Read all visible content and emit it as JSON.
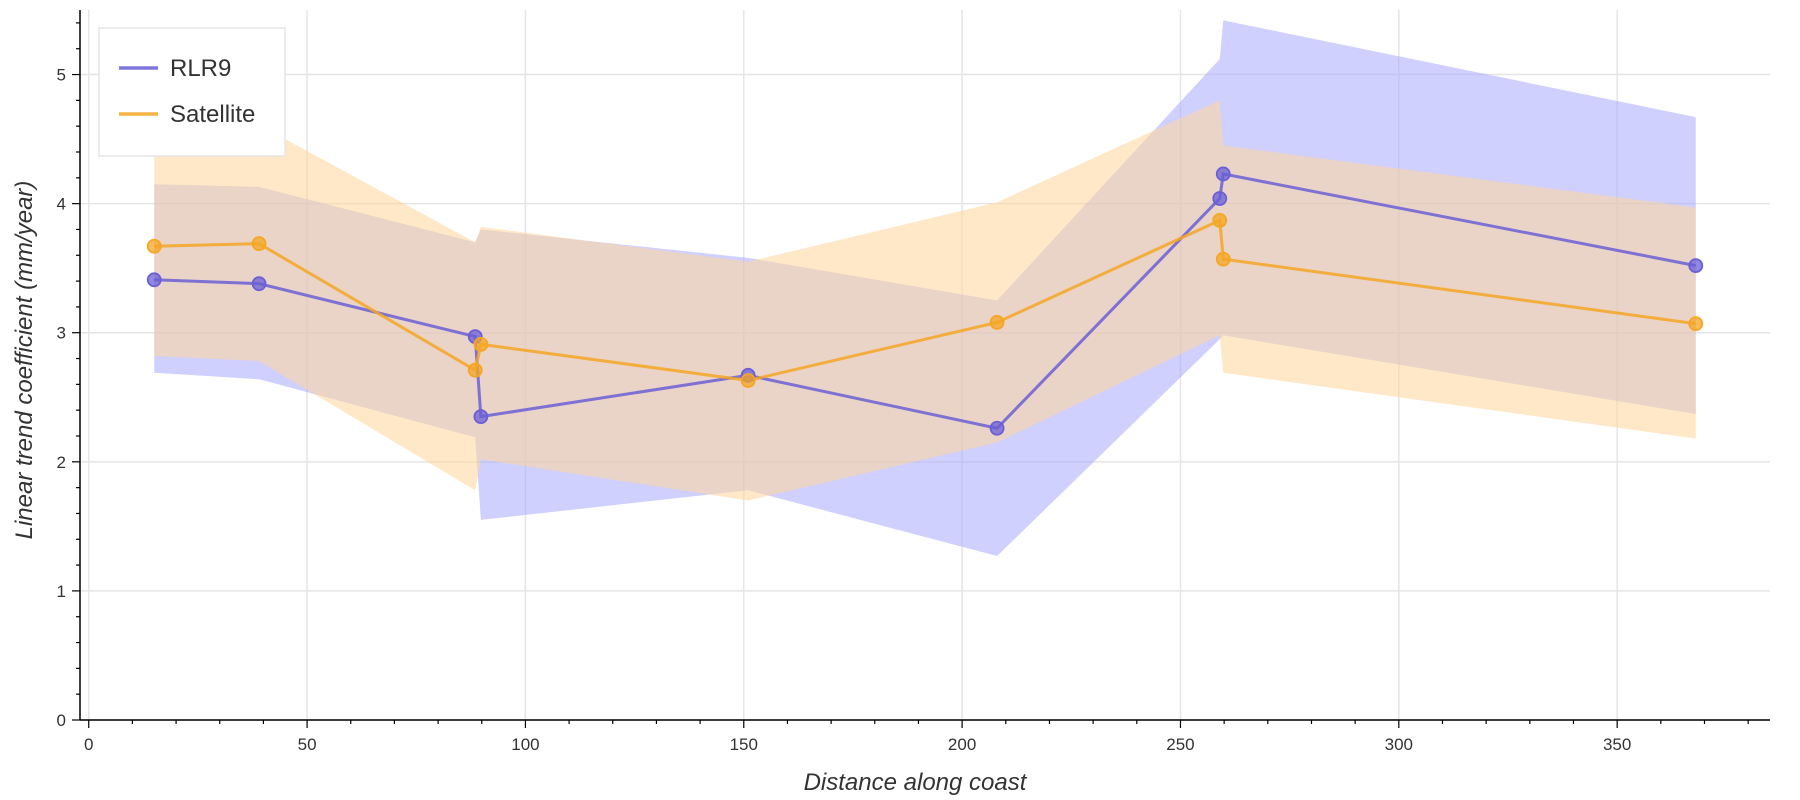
{
  "chart_data": {
    "type": "line",
    "title": "",
    "xlabel": "Distance along coast",
    "ylabel": "Linear trend coefficient (mm/year)",
    "xlim": [
      -2,
      385
    ],
    "ylim": [
      0,
      5.5
    ],
    "x_ticks": [
      0,
      50,
      100,
      150,
      200,
      250,
      300,
      350
    ],
    "y_ticks": [
      0,
      1,
      2,
      3,
      4,
      5
    ],
    "grid": true,
    "legend_position": "top-left",
    "series": [
      {
        "name": "RLR9",
        "color": "#6a5fd6",
        "band_color": "#aaaaff",
        "x": [
          15,
          39,
          88.5,
          89.8,
          151,
          208,
          259,
          259.8,
          368
        ],
        "y": [
          3.41,
          3.38,
          2.97,
          2.35,
          2.67,
          2.26,
          4.04,
          4.23,
          3.52
        ],
        "lower": [
          2.69,
          2.64,
          2.19,
          1.55,
          1.78,
          1.27,
          2.95,
          2.98,
          2.37
        ],
        "upper": [
          4.15,
          4.13,
          3.7,
          3.8,
          3.58,
          3.25,
          5.12,
          5.42,
          4.67
        ]
      },
      {
        "name": "Satellite",
        "color": "#f5a623",
        "band_color": "#ffd699",
        "x": [
          15,
          39,
          88.5,
          89.8,
          151,
          208,
          259,
          259.8,
          368
        ],
        "y": [
          3.67,
          3.69,
          2.71,
          2.91,
          2.63,
          3.08,
          3.87,
          3.57,
          3.07
        ],
        "lower": [
          2.82,
          2.78,
          1.78,
          2.02,
          1.7,
          2.15,
          2.98,
          2.69,
          2.18
        ],
        "upper": [
          4.6,
          4.61,
          3.7,
          3.82,
          3.55,
          4.01,
          4.8,
          4.45,
          3.97
        ]
      }
    ]
  }
}
